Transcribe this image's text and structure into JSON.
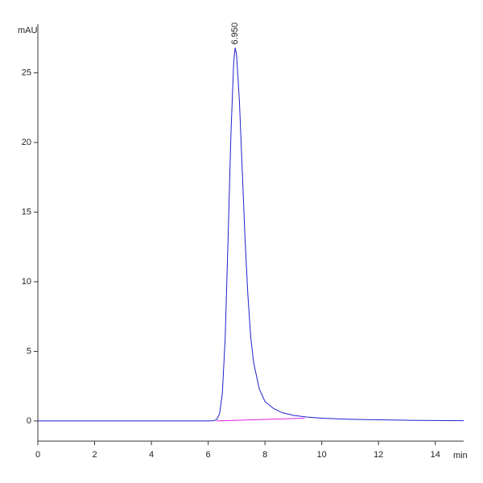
{
  "chart_data": {
    "type": "line",
    "y_label": "mAU",
    "x_label": "min",
    "xlim": [
      0,
      15
    ],
    "xticks": [
      0,
      2,
      4,
      6,
      8,
      10,
      12,
      14
    ],
    "ylim": [
      -1.45,
      28.5
    ],
    "yticks": [
      0,
      5,
      10,
      15,
      20,
      25
    ],
    "series": [
      {
        "color": "#1f1fcc",
        "x": [
          0,
          1,
          2,
          3,
          4,
          5,
          6,
          6.2,
          6.3,
          6.4,
          6.5,
          6.6,
          6.7,
          6.8,
          6.9,
          6.95,
          7.0,
          7.1,
          7.2,
          7.3,
          7.4,
          7.5,
          7.6,
          7.8,
          8.0,
          8.3,
          8.6,
          9.0,
          9.5,
          10,
          11,
          12,
          13,
          14,
          15
        ],
        "values": [
          0,
          0,
          0,
          0,
          0,
          0,
          0,
          0.02,
          0.1,
          0.5,
          2,
          6,
          13,
          20.5,
          25.8,
          26.8,
          26.3,
          23,
          18,
          13,
          9,
          6,
          4.2,
          2.3,
          1.4,
          0.9,
          0.6,
          0.4,
          0.28,
          0.2,
          0.12,
          0.08,
          0.05,
          0.03,
          0.02
        ]
      },
      {
        "color": "#e020e0",
        "x": [
          6.3,
          9.4
        ],
        "values": [
          0,
          0.2
        ]
      }
    ],
    "annotations": [
      {
        "label": "6.950",
        "x": 6.95,
        "y": 26.8
      }
    ]
  }
}
